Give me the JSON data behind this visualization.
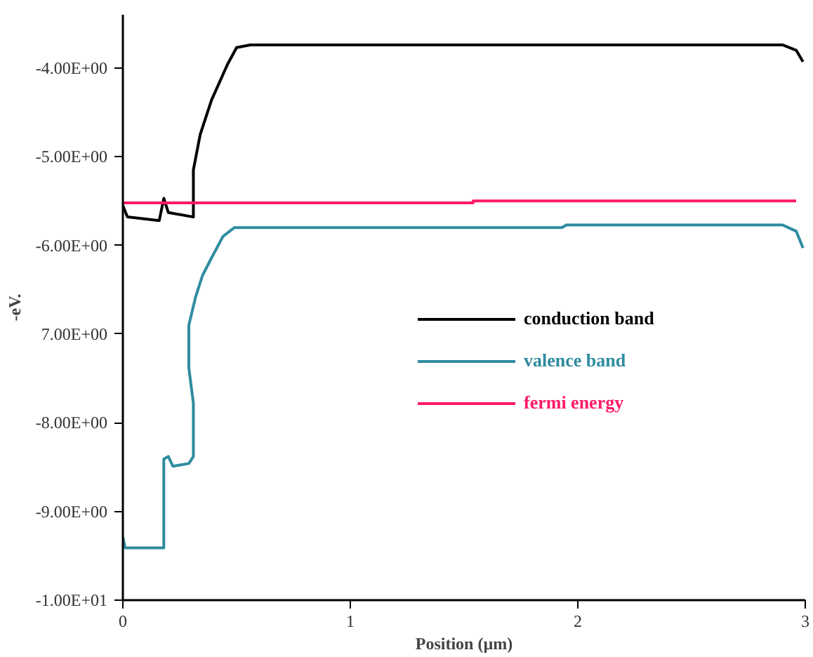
{
  "chart_data": {
    "type": "line",
    "xlabel": "Position (µm)",
    "ylabel": "-eV.",
    "xlim": [
      0,
      3
    ],
    "ylim": [
      -10,
      -3.4
    ],
    "xticks": [
      0,
      1,
      2,
      3
    ],
    "yticks": [
      {
        "value": -4,
        "label": "-4.00E+00"
      },
      {
        "value": -5,
        "label": "-5.00E+00"
      },
      {
        "value": -6,
        "label": "-6.00E+00"
      },
      {
        "value": -7,
        "label": "7.00E+00"
      },
      {
        "value": -8,
        "label": "-8.00E+00"
      },
      {
        "value": -9,
        "label": "-9.00E+00"
      },
      {
        "value": -10,
        "label": "-1.00E+01"
      }
    ],
    "grid": false,
    "legend": "right",
    "marker": "none",
    "line_style": "solid",
    "series": [
      {
        "name": "conduction band",
        "color": "#000000",
        "x": [
          0,
          0.02,
          0.16,
          0.18,
          0.2,
          0.31,
          0.31,
          0.34,
          0.39,
          0.46,
          0.5,
          0.56,
          2.9,
          2.96,
          2.99
        ],
        "values": [
          -5.55,
          -5.68,
          -5.72,
          -5.47,
          -5.63,
          -5.68,
          -5.15,
          -4.75,
          -4.36,
          -3.96,
          -3.77,
          -3.74,
          -3.74,
          -3.8,
          -3.93
        ]
      },
      {
        "name": "valence band",
        "color": "#2f8ca0",
        "x": [
          0,
          0.01,
          0.18,
          0.18,
          0.2,
          0.22,
          0.29,
          0.31,
          0.31,
          0.29,
          0.29,
          0.32,
          0.35,
          0.39,
          0.44,
          0.49,
          1.93,
          1.95,
          2.9,
          2.96,
          2.99
        ],
        "values": [
          -9.29,
          -9.41,
          -9.41,
          -8.41,
          -8.38,
          -8.49,
          -8.46,
          -8.38,
          -7.78,
          -7.38,
          -6.9,
          -6.58,
          -6.34,
          -6.14,
          -5.9,
          -5.8,
          -5.8,
          -5.77,
          -5.77,
          -5.84,
          -6.03
        ]
      },
      {
        "name": "fermi energy",
        "color": "#ff1a66",
        "x": [
          0,
          1.54,
          1.54,
          2.96
        ],
        "values": [
          -5.52,
          -5.52,
          -5.5,
          -5.5
        ]
      }
    ]
  }
}
